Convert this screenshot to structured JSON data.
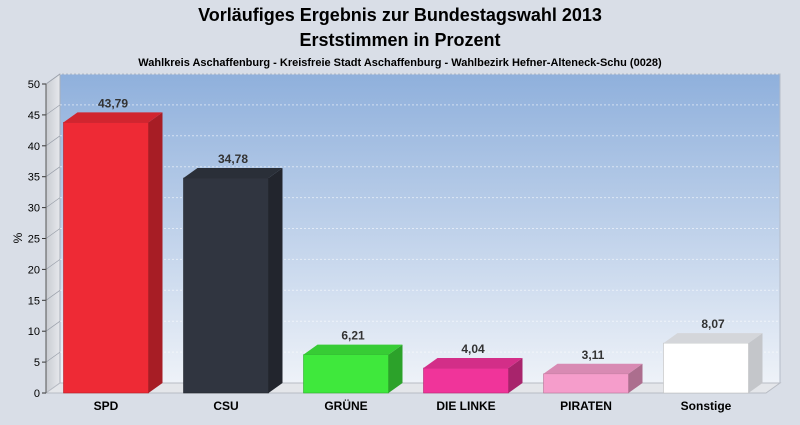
{
  "chart_data": {
    "type": "bar",
    "title": "Vorläufiges Ergebnis zur Bundestagswahl 2013",
    "title_line2": "Erststimmen in Prozent",
    "subtitle": "Wahlkreis Aschaffenburg - Kreisfreie Stadt Aschaffenburg - Wahlbezirk Hefner-Alteneck-Schu (0028)",
    "ylabel": "%",
    "xlabel": "",
    "ylim": [
      0,
      50
    ],
    "yticks": [
      0,
      5,
      10,
      15,
      20,
      25,
      30,
      35,
      40,
      45,
      50
    ],
    "grid": true,
    "categories": [
      "SPD",
      "CSU",
      "GRÜNE",
      "DIE LINKE",
      "PIRATEN",
      "Sonstige"
    ],
    "values": [
      43.79,
      34.78,
      6.21,
      4.04,
      3.11,
      8.07
    ],
    "value_labels": [
      "43,79",
      "34,78",
      "6,21",
      "4,04",
      "3,11",
      "8,07"
    ],
    "colors": [
      "#ee2a35",
      "#303540",
      "#3fe83c",
      "#f0349a",
      "#f59dcb",
      "#ffffff"
    ]
  }
}
